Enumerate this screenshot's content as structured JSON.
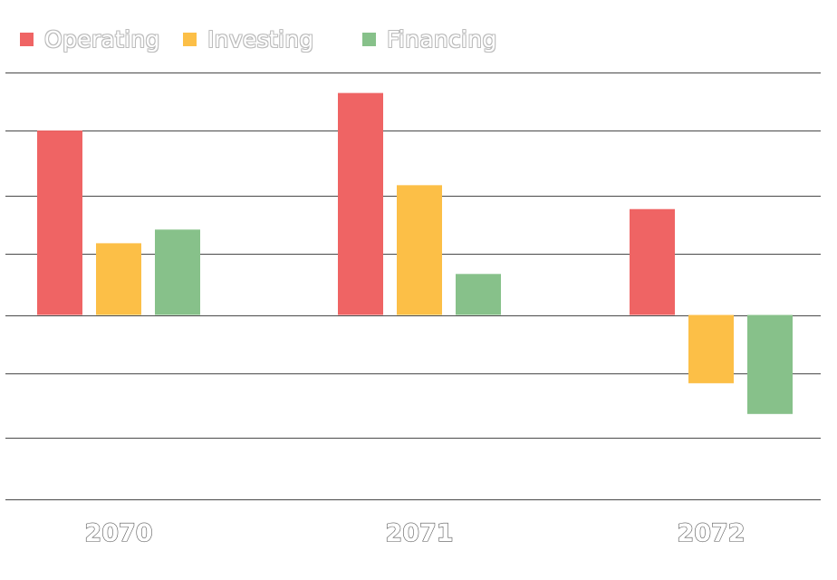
{
  "chart_data": {
    "type": "bar",
    "title": "",
    "xlabel": "",
    "ylabel": "",
    "categories": [
      "2070",
      "2071",
      "2072"
    ],
    "series": [
      {
        "name": "Operating",
        "color": "#ef6464",
        "values": [
          2.7,
          3.25,
          1.55
        ]
      },
      {
        "name": "Investing",
        "color": "#fcbf47",
        "values": [
          1.05,
          1.9,
          -1.0
        ]
      },
      {
        "name": "Financing",
        "color": "#87c18a",
        "values": [
          1.25,
          0.6,
          -1.45
        ]
      }
    ],
    "ylim": [
      -2.7,
      3.55
    ],
    "gridlines": [
      3.55,
      2.7,
      1.75,
      0.9,
      0,
      -0.85,
      -1.8,
      -2.7
    ],
    "show_y_tick_labels": false,
    "legend": {
      "position": "top-left"
    },
    "grid": true
  }
}
